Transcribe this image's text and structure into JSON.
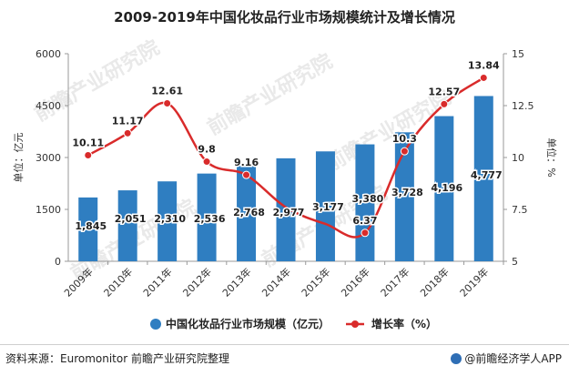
{
  "title": "2009-2019年中国化妆品行业市场规模统计及增长情况",
  "footer": {
    "source": "资料来源：Euromonitor 前瞻产业研究院整理",
    "brand": "@前瞻经济学人APP"
  },
  "chart_data": {
    "type": "bar",
    "categories": [
      "2009年",
      "2010年",
      "2011年",
      "2012年",
      "2013年",
      "2014年",
      "2015年",
      "2016年",
      "2017年",
      "2018年",
      "2019年"
    ],
    "series": [
      {
        "name": "中国化妆品行业市场规模（亿元）",
        "type": "bar",
        "axis": "left",
        "color": "#2f7ec1",
        "values": [
          1845,
          2051,
          2310,
          2536,
          2768,
          2977,
          3177,
          3380,
          3728,
          4196,
          4777
        ],
        "labels": [
          "1,845",
          "2,051",
          "2,310",
          "2,536",
          "2,768",
          "2,977",
          "3,177",
          "3,380",
          "3,728",
          "4,196",
          "4,777"
        ]
      },
      {
        "name": "增长率（%）",
        "type": "line",
        "axis": "right",
        "color": "#d92b2b",
        "values": [
          10.11,
          11.17,
          12.61,
          9.8,
          9.16,
          null,
          null,
          6.37,
          10.3,
          12.57,
          13.84
        ],
        "labels": [
          "10.11",
          "11.17",
          "12.61",
          "9.8",
          "9.16",
          "",
          "",
          "6.37",
          "10.3",
          "12.57",
          "13.84"
        ],
        "curve_only_values": [
          null,
          null,
          null,
          null,
          null,
          7.6,
          6.8,
          null,
          null,
          null,
          null
        ]
      }
    ],
    "ylabel_left": "单位：亿元",
    "ylabel_right": "单位：%",
    "ylim_left": [
      0,
      6000
    ],
    "yticks_left": [
      "0",
      "1500",
      "3000",
      "4500",
      "6000"
    ],
    "ylim_right": [
      5,
      15
    ],
    "yticks_right": [
      "5",
      "7.5",
      "10",
      "12.5",
      "15"
    ],
    "grid": false,
    "legend_position": "bottom"
  },
  "watermark": "前瞻产业研究院"
}
